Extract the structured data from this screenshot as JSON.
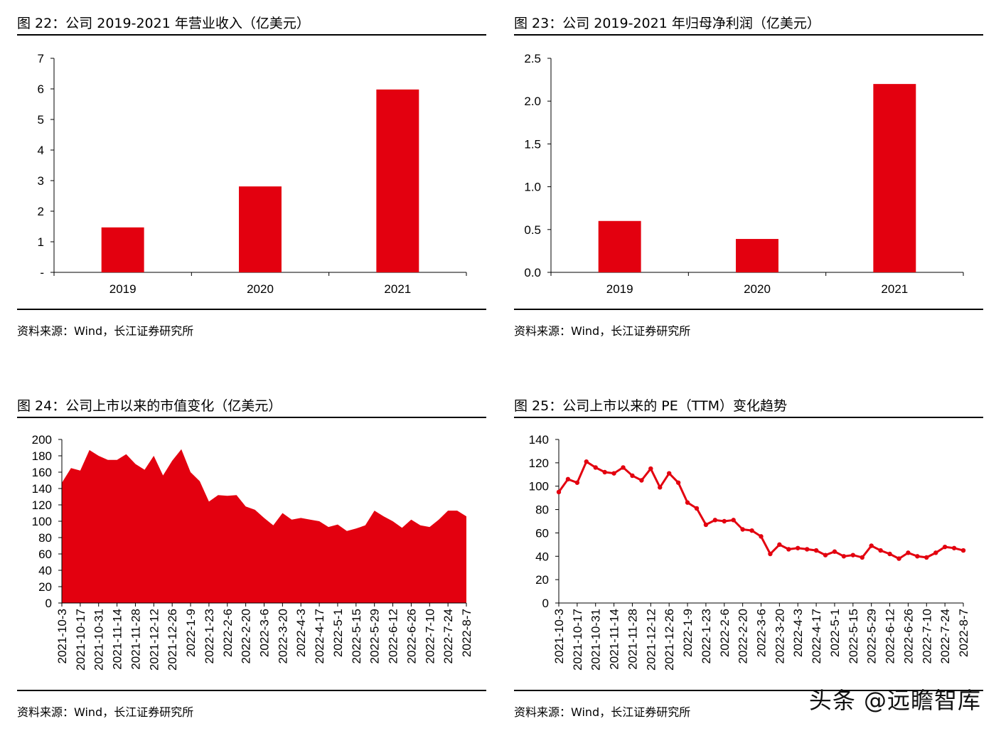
{
  "chart_data": [
    {
      "type": "bar",
      "title": "图 22：公司 2019-2021 年营业收入（亿美元）",
      "source": "资料来源：Wind，长江证券研究所",
      "categories": [
        "2019",
        "2020",
        "2021"
      ],
      "values": [
        1.47,
        2.81,
        5.98
      ],
      "ylim": [
        0,
        7
      ],
      "yticks": [
        0,
        1,
        2,
        3,
        4,
        5,
        6,
        7
      ],
      "yticklabels": [
        "-",
        "1",
        "2",
        "3",
        "4",
        "5",
        "6",
        "7"
      ],
      "color": "#e3000f"
    },
    {
      "type": "bar",
      "title": "图 23：公司 2019-2021 年归母净利润（亿美元）",
      "source": "资料来源：Wind，长江证券研究所",
      "categories": [
        "2019",
        "2020",
        "2021"
      ],
      "values": [
        0.6,
        0.39,
        2.2
      ],
      "ylim": [
        0,
        2.5
      ],
      "yticks": [
        0,
        0.5,
        1,
        1.5,
        2,
        2.5
      ],
      "yticklabels": [
        "0.0",
        "0.5",
        "1.0",
        "1.5",
        "2.0",
        "2.5"
      ],
      "color": "#e3000f"
    },
    {
      "type": "area",
      "title": "图 24：公司上市以来的市值变化（亿美元）",
      "source": "资料来源：Wind，长江证券研究所",
      "ylim": [
        0,
        200
      ],
      "yticks": [
        0,
        20,
        40,
        60,
        80,
        100,
        120,
        140,
        160,
        180,
        200
      ],
      "xticklabels": [
        "2021-10-3",
        "2021-10-17",
        "2021-10-31",
        "2021-11-14",
        "2021-11-28",
        "2021-12-12",
        "2021-12-26",
        "2022-1-9",
        "2022-1-23",
        "2022-2-6",
        "2022-2-20",
        "2022-3-6",
        "2022-3-20",
        "2022-4-3",
        "2022-4-17",
        "2022-5-1",
        "2022-5-15",
        "2022-5-29",
        "2022-6-12",
        "2022-6-26",
        "2022-7-10",
        "2022-7-24",
        "2022-8-7"
      ],
      "values": [
        147,
        165,
        162,
        187,
        180,
        175,
        175,
        182,
        170,
        163,
        180,
        156,
        174,
        188,
        160,
        149,
        124,
        132,
        131,
        132,
        118,
        114,
        104,
        95,
        110,
        102,
        104,
        102,
        100,
        93,
        96,
        88,
        91,
        95,
        113,
        106,
        100,
        92,
        102,
        95,
        93,
        102,
        113,
        113,
        106
      ],
      "color": "#e3000f"
    },
    {
      "type": "line",
      "title": "图 25：公司上市以来的 PE（TTM）变化趋势",
      "source": "资料来源：Wind，长江证券研究所",
      "ylim": [
        0,
        140
      ],
      "yticks": [
        0,
        20,
        40,
        60,
        80,
        100,
        120,
        140
      ],
      "xticklabels": [
        "2021-10-3",
        "2021-10-17",
        "2021-10-31",
        "2021-11-14",
        "2021-11-28",
        "2021-12-12",
        "2021-12-26",
        "2022-1-9",
        "2022-1-23",
        "2022-2-6",
        "2022-2-20",
        "2022-3-6",
        "2022-3-20",
        "2022-4-3",
        "2022-4-17",
        "2022-5-1",
        "2022-5-15",
        "2022-5-29",
        "2022-6-12",
        "2022-6-26",
        "2022-7-10",
        "2022-7-24",
        "2022-8-7"
      ],
      "values": [
        95,
        106,
        103,
        121,
        116,
        112,
        111,
        116,
        109,
        105,
        115,
        99,
        111,
        103,
        86,
        81,
        67,
        71,
        70,
        71,
        63,
        62,
        57,
        42,
        50,
        46,
        47,
        46,
        45,
        41,
        44,
        40,
        41,
        39,
        49,
        45,
        42,
        38,
        43,
        40,
        39,
        43,
        48,
        47,
        45
      ],
      "color": "#e3000f"
    }
  ],
  "watermark": "头条 @远瞻智库"
}
